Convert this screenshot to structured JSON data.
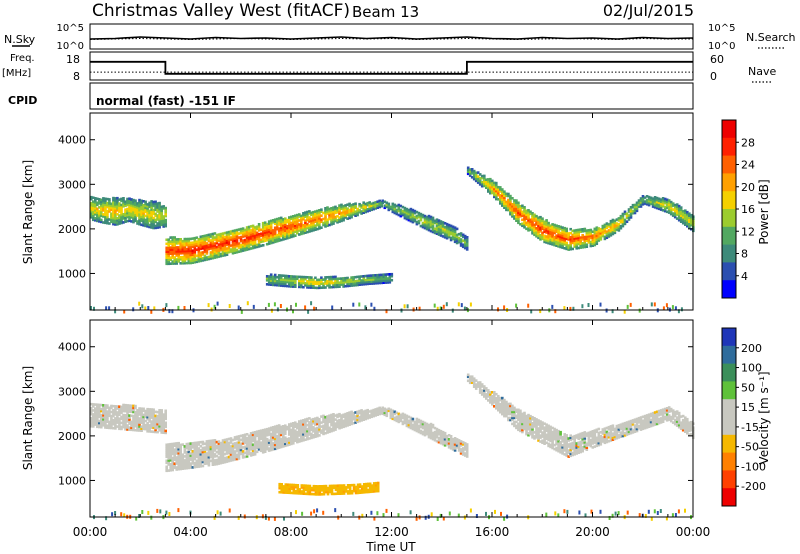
{
  "header": {
    "title": "Christmas Valley West (fitACF)",
    "beam": "Beam 13",
    "date": "02/Jul/2015"
  },
  "top_panels": {
    "nsky_label": "N.Sky",
    "nsearch_label": "N.Search",
    "noise_ticks": [
      "10^5",
      "10^0"
    ],
    "freq_label": [
      "Freq.",
      "[MHz]"
    ],
    "freq_ticks": [
      "18",
      "8"
    ],
    "nave_label": "Nave",
    "nave_ticks": [
      "60",
      "0"
    ],
    "cpid_label": "CPID",
    "cpid_text": "normal (fast) -151 IF"
  },
  "colors": {
    "power_scale": [
      "#0000ff",
      "#2b4fb0",
      "#3d8a7a",
      "#52a861",
      "#9ccc2f",
      "#f5d000",
      "#ffa000",
      "#ff6000",
      "#ff2000",
      "#ee0000"
    ],
    "velocity_scale": [
      "#1f36b8",
      "#2f6c9c",
      "#3b8f5a",
      "#5fc13a",
      "#c8c8c0",
      "#c8c8c0",
      "#f5b800",
      "#ff8000",
      "#ff4000",
      "#ee0000"
    ],
    "ground_scatter": "#c8c8c0"
  },
  "chart_data": [
    {
      "type": "line",
      "panel": "noise",
      "series": [
        {
          "name": "N.Sky",
          "values": [
            2.0,
            2.1,
            2.4,
            2.2,
            2.0,
            2.3,
            2.1,
            2.2,
            2.0,
            2.2,
            2.4,
            2.1,
            2.3,
            2.0,
            2.2,
            2.4,
            2.1,
            2.0,
            2.3,
            2.1,
            2.2,
            2.0,
            2.3,
            2.1,
            2.2
          ]
        },
        {
          "name": "N.Search",
          "values": [
            1.9,
            2.0,
            2.1,
            2.0,
            1.9,
            2.0,
            2.1,
            2.0,
            1.9,
            2.0,
            2.1,
            2.0,
            2.1,
            1.9,
            2.0,
            2.1,
            2.0,
            1.9,
            2.0,
            2.1,
            2.0,
            1.9,
            2.1,
            2.0,
            2.0
          ]
        }
      ],
      "x_hours": [
        0,
        1,
        2,
        3,
        4,
        5,
        6,
        7,
        8,
        9,
        10,
        11,
        12,
        13,
        14,
        15,
        16,
        17,
        18,
        19,
        20,
        21,
        22,
        23,
        24
      ],
      "ylim": [
        0,
        5
      ]
    },
    {
      "type": "line",
      "panel": "frequency",
      "series": [
        {
          "name": "Freq.",
          "x": [
            0,
            3.0,
            3.0,
            15.0,
            15.0,
            24
          ],
          "values": [
            14.5,
            14.5,
            10.2,
            10.2,
            14.5,
            14.5
          ]
        },
        {
          "name": "Nave",
          "x": [
            0,
            24
          ],
          "values": [
            17,
            17
          ]
        }
      ],
      "ylim_freq": [
        8,
        18
      ],
      "ylim_nave": [
        0,
        60
      ]
    },
    {
      "type": "heatmap",
      "panel": "power",
      "ylabel": "Slant Range [km]",
      "clabel": "Power [dB]",
      "colorbar_ticks": [
        4,
        8,
        12,
        16,
        20,
        24,
        28
      ],
      "clim": [
        0,
        32
      ],
      "ylim": [
        180,
        4600
      ],
      "yticks": [
        1000,
        2000,
        3000,
        4000
      ],
      "bands": [
        {
          "x": [
            0.0,
            0.5,
            1.0,
            1.5,
            2.0,
            2.5,
            3.0
          ],
          "center": [
            2450,
            2400,
            2380,
            2420,
            2350,
            2300,
            2300
          ],
          "width": [
            500,
            550,
            600,
            500,
            550,
            600,
            500
          ],
          "peak": [
            18,
            20,
            20,
            18,
            19,
            18,
            17
          ]
        },
        {
          "x": [
            3.0,
            4.0,
            5.0,
            6.0,
            7.0,
            8.0,
            9.0,
            10.0,
            11.0,
            11.6
          ],
          "center": [
            1500,
            1500,
            1620,
            1750,
            1900,
            2050,
            2200,
            2350,
            2480,
            2560
          ],
          "width": [
            600,
            560,
            540,
            520,
            520,
            480,
            440,
            360,
            200,
            120
          ],
          "peak": [
            26,
            29,
            28,
            28,
            27,
            26,
            24,
            22,
            18,
            14
          ]
        },
        {
          "x": [
            11.6,
            12.5,
            13.5,
            14.5,
            15.0
          ],
          "center": [
            2560,
            2350,
            2100,
            1850,
            1650
          ],
          "width": [
            160,
            260,
            320,
            320,
            280
          ],
          "peak": [
            12,
            14,
            16,
            15,
            12
          ]
        },
        {
          "x": [
            15.0,
            16.0,
            17.0,
            18.0,
            19.0,
            20.0,
            21.0,
            22.0,
            23.0,
            24.0
          ],
          "center": [
            3300,
            2900,
            2350,
            1950,
            1750,
            1800,
            2100,
            2650,
            2500,
            2100
          ],
          "width": [
            160,
            350,
            460,
            500,
            460,
            380,
            300,
            180,
            300,
            350
          ],
          "peak": [
            12,
            22,
            26,
            27,
            26,
            24,
            20,
            14,
            18,
            17
          ]
        },
        {
          "x": [
            7.0,
            8.0,
            9.0,
            10.0,
            11.0,
            12.0
          ],
          "center": [
            850,
            820,
            780,
            800,
            850,
            880
          ],
          "width": [
            220,
            260,
            240,
            220,
            200,
            180
          ],
          "peak": [
            13,
            16,
            20,
            17,
            14,
            12
          ]
        }
      ]
    },
    {
      "type": "heatmap",
      "panel": "velocity",
      "ylabel": "Slant Range [km]",
      "clabel": "Velocity [m s⁻¹]",
      "colorbar_ticks": [
        200,
        100,
        50,
        15,
        -15,
        -50,
        -100,
        -200
      ],
      "ylim": [
        180,
        4600
      ],
      "yticks": [
        1000,
        2000,
        3000,
        4000
      ],
      "note_ground_scatter_color": "grey",
      "bands": [
        {
          "x": [
            0.0,
            1.5,
            3.0
          ],
          "center": [
            2450,
            2400,
            2300
          ],
          "width": [
            500,
            550,
            500
          ],
          "velocity": -10
        },
        {
          "x": [
            3.0,
            5.0,
            7.0,
            9.0,
            11.0,
            11.6
          ],
          "center": [
            1500,
            1620,
            1900,
            2200,
            2480,
            2560
          ],
          "width": [
            600,
            540,
            520,
            440,
            200,
            120
          ],
          "velocity": -30
        },
        {
          "x": [
            11.6,
            13.5,
            15.0
          ],
          "center": [
            2560,
            2100,
            1650
          ],
          "width": [
            160,
            320,
            280
          ],
          "velocity": -5
        },
        {
          "x": [
            15.0,
            17.0,
            19.0,
            21.0,
            23.0,
            24.0
          ],
          "center": [
            3300,
            2350,
            1750,
            2100,
            2500,
            2100
          ],
          "width": [
            160,
            460,
            460,
            300,
            300,
            350
          ],
          "velocity": -8
        },
        {
          "x": [
            7.5,
            9.0,
            10.5,
            11.5
          ],
          "center": [
            820,
            780,
            800,
            840
          ],
          "width": [
            200,
            220,
            200,
            180
          ],
          "velocity": -70
        }
      ]
    }
  ],
  "time_axis": {
    "label": "Time UT",
    "ticks": [
      "00:00",
      "04:00",
      "08:00",
      "12:00",
      "16:00",
      "20:00",
      "00:00"
    ]
  }
}
